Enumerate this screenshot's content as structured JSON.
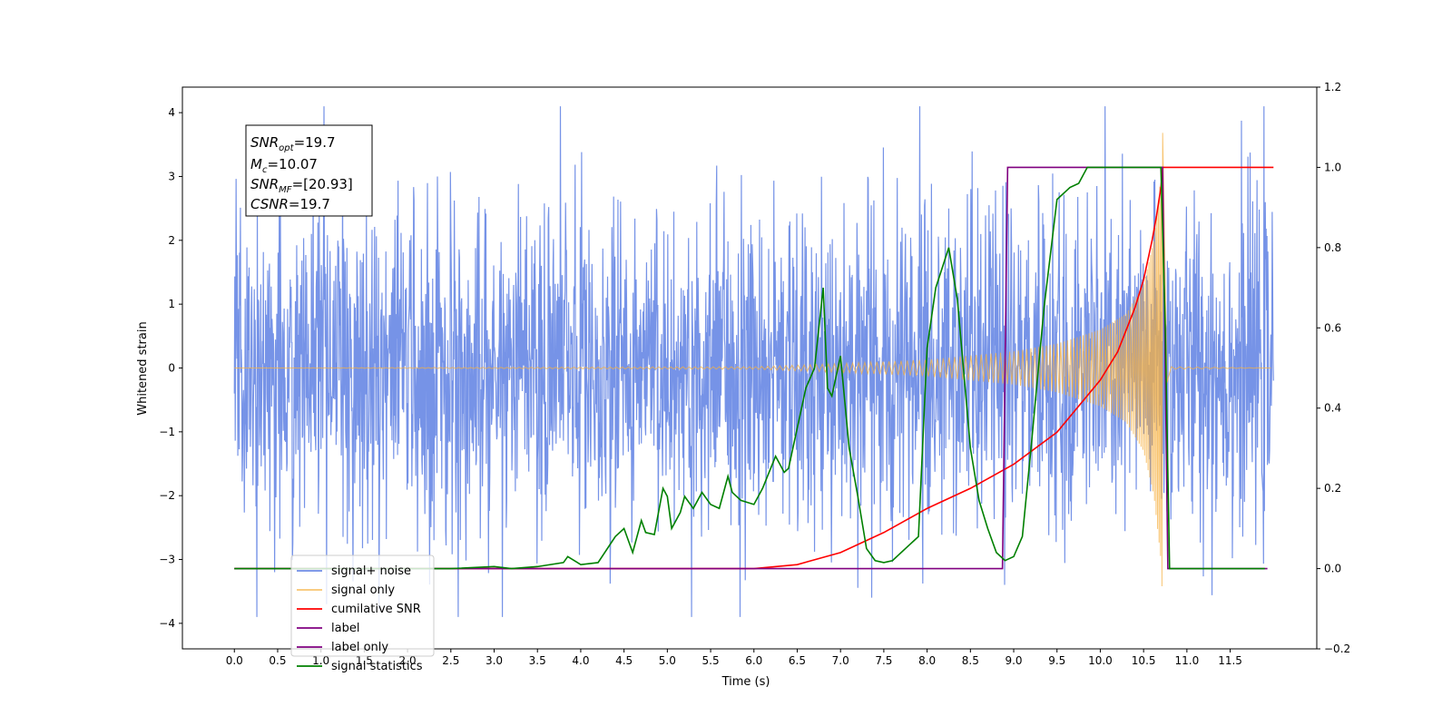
{
  "chart_data": {
    "type": "line",
    "title": "",
    "xlabel": "Time (s)",
    "ylabel": "Whitened strain",
    "y2label": "",
    "xlim": [
      -0.6,
      12.5
    ],
    "ylim": [
      -4.4,
      4.4
    ],
    "y2lim": [
      -0.2,
      1.2
    ],
    "xticks": [
      0.0,
      0.5,
      1.0,
      1.5,
      2.0,
      2.5,
      3.0,
      3.5,
      4.0,
      4.5,
      5.0,
      5.5,
      6.0,
      6.5,
      7.0,
      7.5,
      8.0,
      8.5,
      9.0,
      9.5,
      10.0,
      10.5,
      11.0,
      11.5
    ],
    "xtick_labels": [
      "0.0",
      "0.5",
      "1.0",
      "1.5",
      "2.0",
      "2.5",
      "3.0",
      "3.5",
      "4.0",
      "4.5",
      "5.0",
      "5.5",
      "6.0",
      "6.5",
      "7.0",
      "7.5",
      "8.0",
      "8.5",
      "9.0",
      "9.5",
      "10.0",
      "10.5",
      "11.0",
      "11.5"
    ],
    "yticks": [
      -4,
      -3,
      -2,
      -1,
      0,
      1,
      2,
      3,
      4
    ],
    "ytick_labels": [
      "−4",
      "−3",
      "−2",
      "−1",
      "0",
      "1",
      "2",
      "3",
      "4"
    ],
    "y2ticks": [
      -0.2,
      0.0,
      0.2,
      0.4,
      0.6,
      0.8,
      1.0,
      1.2
    ],
    "y2tick_labels": [
      "−0.2",
      "0.0",
      "0.2",
      "0.4",
      "0.6",
      "0.8",
      "1.0",
      "1.2"
    ],
    "grid": false,
    "legend_position": "lower-left",
    "series": [
      {
        "name": "signal+ noise",
        "axis": "left",
        "color": "#6f8de6",
        "style": "dense-noise",
        "x_start": 0.0,
        "x_end": 12.0,
        "typical_amplitude": 2.6,
        "max": 4.1,
        "min": -3.9
      },
      {
        "name": "signal only",
        "axis": "left",
        "color": "#f5b041",
        "style": "chirp",
        "x_start": 0.0,
        "x_end": 12.0,
        "merger_time": 10.72,
        "envelope": [
          [
            0.0,
            0.0
          ],
          [
            6.0,
            0.02
          ],
          [
            7.0,
            0.07
          ],
          [
            8.0,
            0.13
          ],
          [
            9.0,
            0.26
          ],
          [
            9.5,
            0.38
          ],
          [
            10.0,
            0.6
          ],
          [
            10.3,
            0.85
          ],
          [
            10.5,
            1.3
          ],
          [
            10.62,
            2.0
          ],
          [
            10.7,
            3.0
          ],
          [
            10.72,
            3.7
          ],
          [
            10.76,
            0.3
          ],
          [
            10.8,
            0.02
          ],
          [
            12.0,
            0.0
          ]
        ]
      },
      {
        "name": "cumilative SNR",
        "axis": "right",
        "color": "#ff0000",
        "x": [
          0.0,
          6.0,
          6.5,
          7.0,
          7.5,
          8.0,
          8.5,
          9.0,
          9.5,
          10.0,
          10.2,
          10.4,
          10.5,
          10.6,
          10.65,
          10.7,
          10.72,
          12.0
        ],
        "y": [
          0.0,
          0.0,
          0.01,
          0.04,
          0.09,
          0.15,
          0.2,
          0.26,
          0.34,
          0.47,
          0.54,
          0.65,
          0.72,
          0.82,
          0.88,
          0.95,
          1.0,
          1.0
        ]
      },
      {
        "name": "label",
        "axis": "right",
        "color": "#800080",
        "x": [
          0.0,
          8.87,
          8.93,
          10.72,
          10.78,
          11.93
        ],
        "y": [
          0.0,
          0.0,
          1.0,
          1.0,
          0.0,
          0.0
        ]
      },
      {
        "name": "label only",
        "axis": "right",
        "color": "#800080",
        "x": [],
        "y": []
      },
      {
        "name": "signal statistics",
        "axis": "right",
        "color": "#008000",
        "x": [
          0.0,
          2.5,
          3.0,
          3.2,
          3.5,
          3.8,
          3.85,
          4.0,
          4.2,
          4.4,
          4.5,
          4.6,
          4.7,
          4.75,
          4.85,
          4.95,
          5.0,
          5.05,
          5.15,
          5.2,
          5.3,
          5.4,
          5.5,
          5.6,
          5.7,
          5.75,
          5.85,
          6.0,
          6.1,
          6.25,
          6.35,
          6.4,
          6.5,
          6.6,
          6.7,
          6.8,
          6.85,
          6.9,
          7.0,
          7.1,
          7.2,
          7.3,
          7.4,
          7.5,
          7.6,
          7.75,
          7.9,
          8.0,
          8.1,
          8.25,
          8.35,
          8.5,
          8.6,
          8.7,
          8.8,
          8.9,
          9.0,
          9.1,
          9.2,
          9.35,
          9.5,
          9.65,
          9.75,
          9.85,
          10.0,
          10.5,
          10.7,
          10.75,
          10.8,
          11.9
        ],
        "y": [
          0.0,
          0.0,
          0.005,
          0.0,
          0.005,
          0.015,
          0.03,
          0.01,
          0.015,
          0.08,
          0.1,
          0.04,
          0.12,
          0.09,
          0.085,
          0.2,
          0.18,
          0.1,
          0.14,
          0.18,
          0.15,
          0.19,
          0.16,
          0.15,
          0.23,
          0.19,
          0.17,
          0.16,
          0.2,
          0.28,
          0.24,
          0.25,
          0.35,
          0.45,
          0.5,
          0.7,
          0.45,
          0.43,
          0.53,
          0.3,
          0.18,
          0.05,
          0.02,
          0.015,
          0.02,
          0.05,
          0.08,
          0.55,
          0.7,
          0.8,
          0.67,
          0.3,
          0.17,
          0.1,
          0.04,
          0.02,
          0.03,
          0.08,
          0.3,
          0.65,
          0.92,
          0.95,
          0.96,
          1.0,
          1.0,
          1.0,
          1.0,
          0.6,
          0.0,
          0.0
        ]
      }
    ],
    "annotation_lines": [
      {
        "prefix": "SNR",
        "sub": "opt",
        "value": "=19.7"
      },
      {
        "prefix": "M",
        "sub": "c",
        "value": "=10.07"
      },
      {
        "prefix": "SNR",
        "sub": "MF",
        "value": "=[20.93]"
      },
      {
        "prefix": "CSNR",
        "sub": "",
        "value": "=19.7"
      }
    ]
  }
}
